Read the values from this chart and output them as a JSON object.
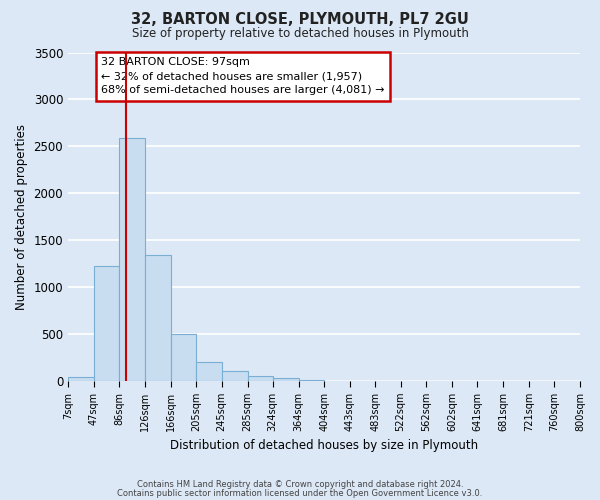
{
  "title": "32, BARTON CLOSE, PLYMOUTH, PL7 2GU",
  "subtitle": "Size of property relative to detached houses in Plymouth",
  "xlabel": "Distribution of detached houses by size in Plymouth",
  "ylabel": "Number of detached properties",
  "bar_color": "#c8ddf0",
  "bar_edge_color": "#7aafd4",
  "fig_background_color": "#dce8f5",
  "axes_background_color": "#dce8f5",
  "grid_color": "#ffffff",
  "vline_value": 97,
  "vline_color": "#cc0000",
  "bin_edges": [
    7,
    47,
    86,
    126,
    166,
    205,
    245,
    285,
    324,
    364,
    404,
    443,
    483,
    522,
    562,
    602,
    641,
    681,
    721,
    760,
    800
  ],
  "bin_labels": [
    "7sqm",
    "47sqm",
    "86sqm",
    "126sqm",
    "166sqm",
    "205sqm",
    "245sqm",
    "285sqm",
    "324sqm",
    "364sqm",
    "404sqm",
    "443sqm",
    "483sqm",
    "522sqm",
    "562sqm",
    "602sqm",
    "641sqm",
    "681sqm",
    "721sqm",
    "760sqm",
    "800sqm"
  ],
  "bar_heights": [
    50,
    1230,
    2590,
    1340,
    500,
    200,
    110,
    55,
    30,
    10,
    5,
    5,
    0,
    0,
    0,
    0,
    0,
    0,
    0,
    0
  ],
  "ylim": [
    0,
    3500
  ],
  "yticks": [
    0,
    500,
    1000,
    1500,
    2000,
    2500,
    3000,
    3500
  ],
  "annotation_title": "32 BARTON CLOSE: 97sqm",
  "annotation_line1": "← 32% of detached houses are smaller (1,957)",
  "annotation_line2": "68% of semi-detached houses are larger (4,081) →",
  "annotation_box_color": "#ffffff",
  "annotation_edge_color": "#cc0000",
  "footer_line1": "Contains HM Land Registry data © Crown copyright and database right 2024.",
  "footer_line2": "Contains public sector information licensed under the Open Government Licence v3.0."
}
